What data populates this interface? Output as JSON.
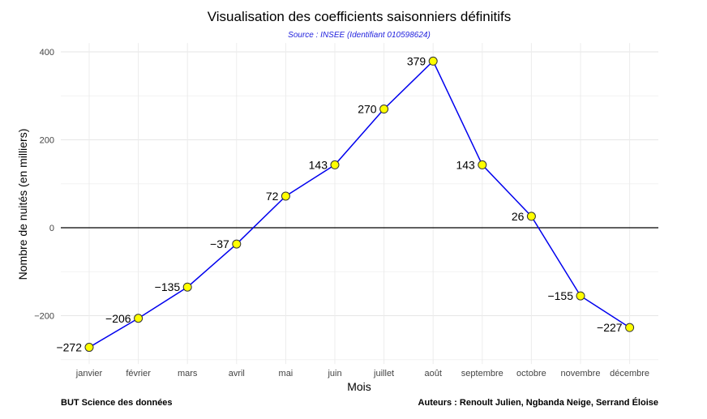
{
  "chart_data": {
    "type": "line",
    "title": "Visualisation des coefficients saisonniers définitifs",
    "subtitle": "Source : INSEE (Identifiant 010598624)",
    "xlabel": "Mois",
    "ylabel": "Nombre de nuités (en milliers)",
    "categories": [
      "janvier",
      "février",
      "mars",
      "avril",
      "mai",
      "juin",
      "juillet",
      "août",
      "septembre",
      "octobre",
      "novembre",
      "décembre"
    ],
    "values": [
      -272,
      -206,
      -135,
      -37,
      72,
      143,
      270,
      379,
      143,
      26,
      -155,
      -227
    ],
    "data_labels": [
      "−272",
      "−206",
      "−135",
      "−37",
      "72",
      "143",
      "270",
      "379",
      "143",
      "26",
      "−155",
      "−227"
    ],
    "ylim": [
      -310,
      420
    ],
    "yticks": [
      400,
      200,
      0,
      -200
    ],
    "ytick_labels": [
      "400",
      "200",
      "0",
      "−200"
    ],
    "grid": true,
    "reference_line_y": 0,
    "colors": {
      "line": "#0000ee",
      "point_fill": "#ffff00",
      "point_stroke": "#333333",
      "subtitle": "#2222dd"
    }
  },
  "footer": {
    "left": "BUT Science des données",
    "right": "Auteurs : Renoult Julien, Ngbanda Neige, Serrand Éloise"
  }
}
